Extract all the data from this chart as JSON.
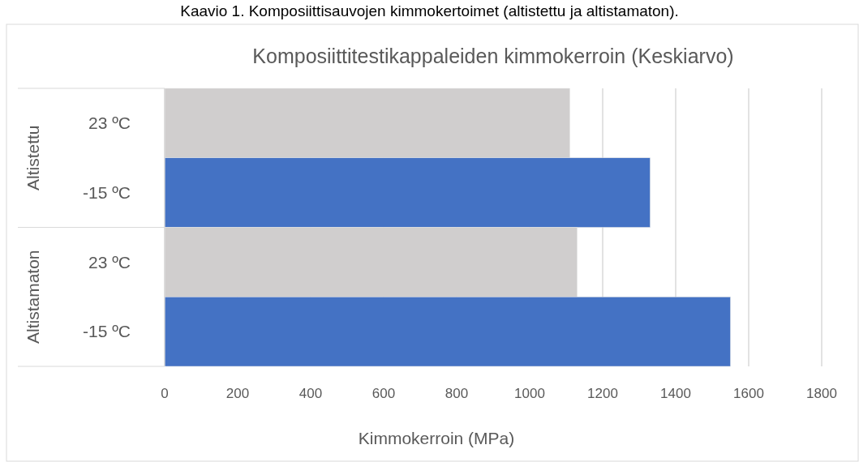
{
  "chart_data": {
    "type": "bar",
    "orientation": "horizontal",
    "title": "Komposiittitestikappaleiden kimmokerroin (Keskiarvo)",
    "xlabel": "Kimmokerroin (MPa)",
    "categories": [
      "23 ºC",
      "-15 ºC",
      "23 ºC",
      "-15 ºC"
    ],
    "values": [
      1110,
      1330,
      1130,
      1550
    ],
    "colors": [
      "#d0cece",
      "#4472c4",
      "#d0cece",
      "#4472c4"
    ],
    "xlim": [
      0,
      1800
    ],
    "xticks": [
      0,
      200,
      400,
      600,
      800,
      1000,
      1200,
      1400,
      1600,
      1800
    ],
    "grid": "x",
    "annotations": [
      "Kaavio 1. Komposiittisauvojen kimmokertoimet (altistettu ja altistamaton).",
      "Altistettu",
      "Altistamaton"
    ]
  }
}
